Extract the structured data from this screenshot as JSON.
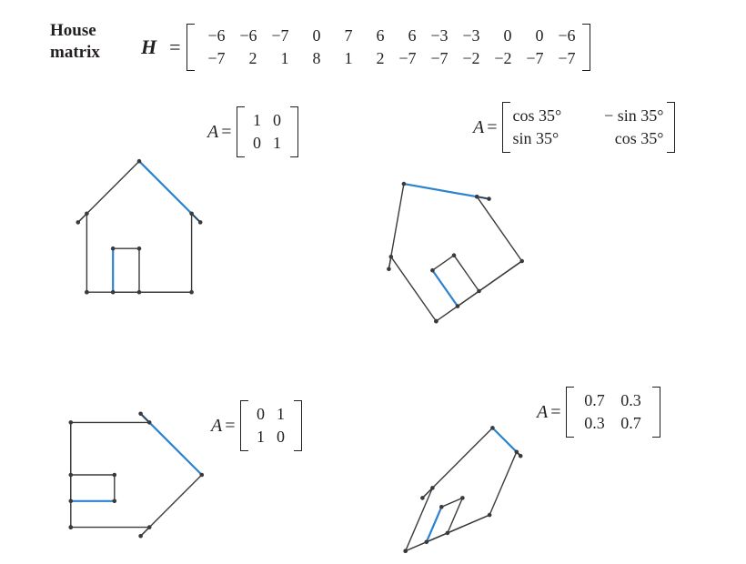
{
  "header": {
    "house_label_line1": "House",
    "house_label_line2": "matrix",
    "matrix_name": "H",
    "equals": "=",
    "row1": [
      "−6",
      "−6",
      "−7",
      "0",
      "7",
      "6",
      "6",
      "−3",
      "−3",
      "0",
      "0",
      "−6"
    ],
    "row2": [
      "−7",
      "2",
      "1",
      "8",
      "1",
      "2",
      "−7",
      "−7",
      "−2",
      "−2",
      "−7",
      "−7"
    ]
  },
  "panels": [
    {
      "name": "identity",
      "matrix_label": "A",
      "equals": "=",
      "rows": [
        [
          "1",
          "0"
        ],
        [
          "0",
          "1"
        ]
      ],
      "matrix": [
        [
          1,
          0
        ],
        [
          0,
          1
        ]
      ]
    },
    {
      "name": "rotation",
      "matrix_label": "A",
      "equals": "=",
      "rows": [
        [
          "cos 35°",
          "− sin 35°"
        ],
        [
          "sin 35°",
          "cos 35°"
        ]
      ],
      "angle_deg": 35
    },
    {
      "name": "reflection",
      "matrix_label": "A",
      "equals": "=",
      "rows": [
        [
          "0",
          "1"
        ],
        [
          "1",
          "0"
        ]
      ],
      "matrix": [
        [
          0,
          1
        ],
        [
          1,
          0
        ]
      ]
    },
    {
      "name": "shear",
      "matrix_label": "A",
      "equals": "=",
      "rows": [
        [
          "0.7",
          "0.3"
        ],
        [
          "0.3",
          "0.7"
        ]
      ],
      "matrix": [
        [
          0.7,
          0.3
        ],
        [
          0.3,
          0.7
        ]
      ]
    }
  ],
  "house_points": {
    "x": [
      -6,
      -6,
      -7,
      0,
      7,
      6,
      6,
      -3,
      -3,
      0,
      0,
      -6
    ],
    "y": [
      -7,
      2,
      1,
      8,
      1,
      2,
      -7,
      -7,
      -2,
      -2,
      -7,
      -7
    ]
  },
  "colors": {
    "outline": "#3a3a3a",
    "highlight": "#2b82cf",
    "vertex": "#3a3a3a"
  }
}
